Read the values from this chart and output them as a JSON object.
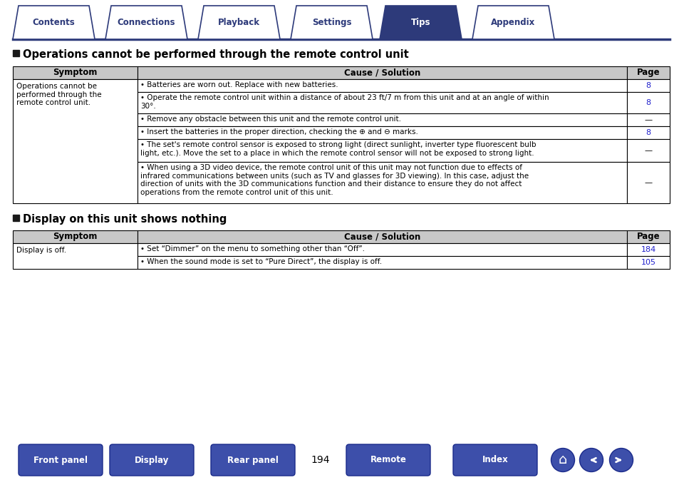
{
  "nav_tabs": [
    "Contents",
    "Connections",
    "Playback",
    "Settings",
    "Tips",
    "Appendix"
  ],
  "active_tab": "Tips",
  "tab_bg_active": "#2d3a7a",
  "tab_bg_inactive": "#ffffff",
  "tab_text_active": "#ffffff",
  "tab_text_inactive": "#2d3a7a",
  "tab_border_color": "#2d3a7a",
  "nav_line_color": "#2d3a7a",
  "section1_title": "Operations cannot be performed through the remote control unit",
  "section2_title": "Display on this unit shows nothing",
  "section_title_color": "#000000",
  "section_bullet_color": "#1a1a1a",
  "header_bg": "#c8c8c8",
  "header_text": "#000000",
  "table_border": "#000000",
  "table1_rows": [
    {
      "symptom": "Operations cannot be\nperformed through the\nremote control unit.",
      "cause": "Batteries are worn out. Replace with new batteries.",
      "page": "8"
    },
    {
      "symptom": "",
      "cause": "Operate the remote control unit within a distance of about 23 ft/7 m from this unit and at an angle of within\n30°.",
      "page": "8"
    },
    {
      "symptom": "",
      "cause": "Remove any obstacle between this unit and the remote control unit.",
      "page": "—"
    },
    {
      "symptom": "",
      "cause": "Insert the batteries in the proper direction, checking the ⊕ and ⊖ marks.",
      "page": "8"
    },
    {
      "symptom": "",
      "cause": "The set's remote control sensor is exposed to strong light (direct sunlight, inverter type fluorescent bulb\nlight, etc.). Move the set to a place in which the remote control sensor will not be exposed to strong light.",
      "page": "—"
    },
    {
      "symptom": "",
      "cause": "When using a 3D video device, the remote control unit of this unit may not function due to effects of\ninfrared communications between units (such as TV and glasses for 3D viewing). In this case, adjust the\ndirection of units with the 3D communications function and their distance to ensure they do not affect\noperations from the remote control unit of this unit.",
      "page": "—"
    }
  ],
  "table2_rows": [
    {
      "symptom": "Display is off.",
      "cause": "Set “Dimmer” on the menu to something other than “Off”.",
      "page": "184"
    },
    {
      "symptom": "",
      "cause": "When the sound mode is set to “Pure Direct”, the display is off.",
      "page": "105"
    }
  ],
  "page_number": "194",
  "bottom_buttons": [
    "Front panel",
    "Display",
    "Rear panel",
    "Remote",
    "Index"
  ],
  "button_color": "#3d4faa",
  "link_color": "#2020cc",
  "bg_color": "#ffffff"
}
